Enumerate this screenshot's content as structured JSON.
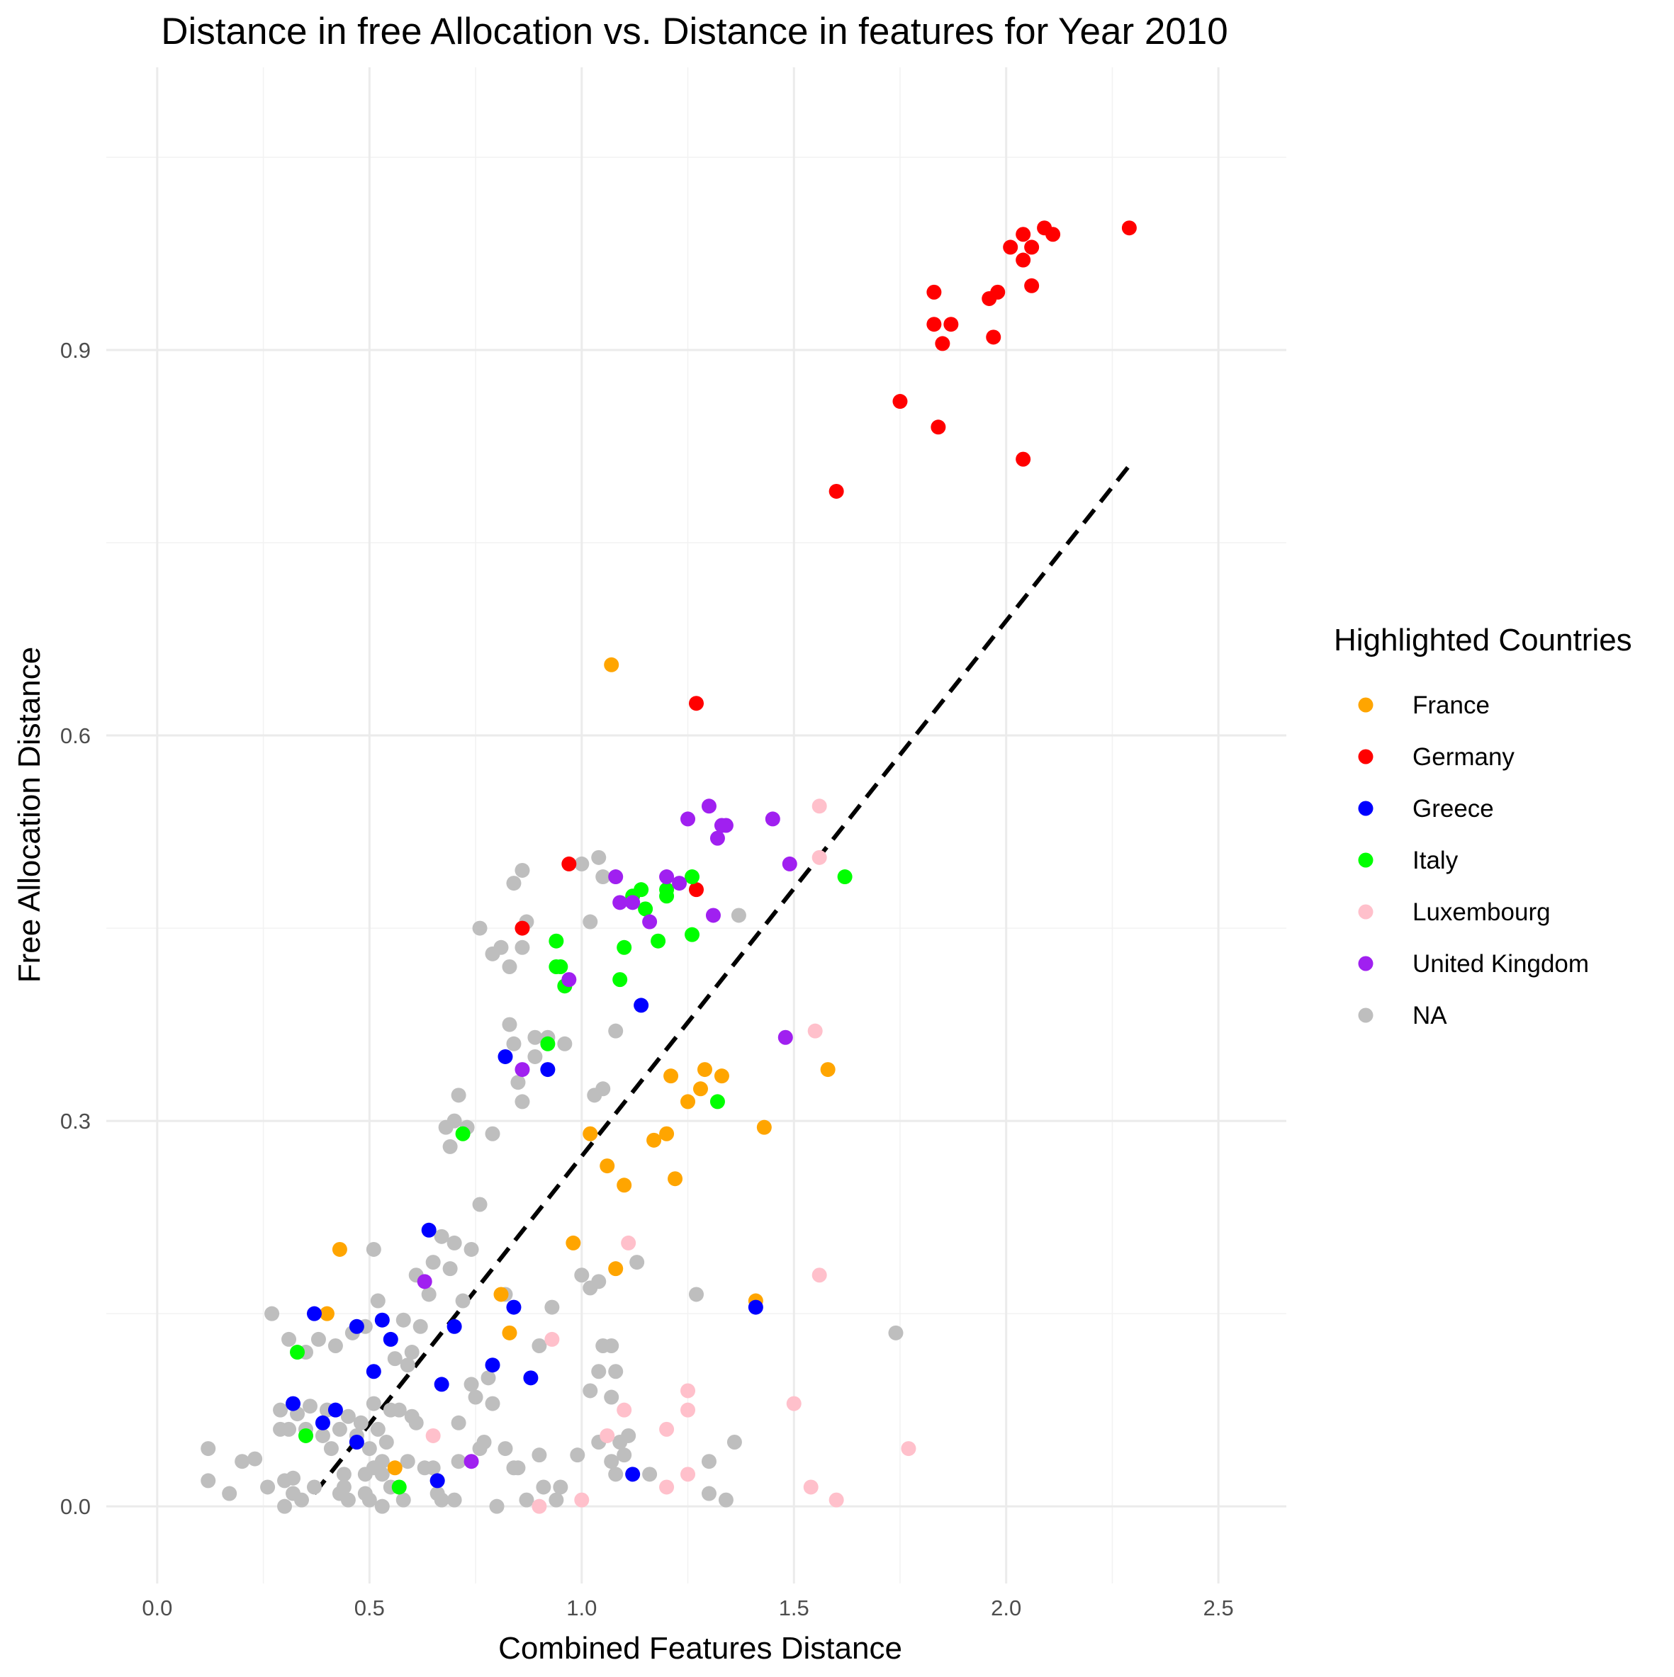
{
  "chart_data": {
    "type": "scatter",
    "title": "Distance in free Allocation vs. Distance in features for Year 2010",
    "xlabel": "Combined Features Distance",
    "ylabel": "Free Allocation Distance",
    "xlim": [
      -0.12,
      2.66
    ],
    "ylim": [
      -0.06,
      1.12
    ],
    "x_ticks": [
      0.0,
      0.5,
      1.0,
      1.5,
      2.0,
      2.5
    ],
    "x_tick_labels": [
      "0.0",
      "0.5",
      "1.0",
      "1.5",
      "2.0",
      "2.5"
    ],
    "y_ticks": [
      0.0,
      0.3,
      0.6,
      0.9
    ],
    "y_tick_labels": [
      "0.0",
      "0.3",
      "0.6",
      "0.9"
    ],
    "grid": true,
    "legend": {
      "title": "Highlighted Countries",
      "position": "right"
    },
    "trend_line": {
      "style": "dashed",
      "color": "#000000",
      "x": [
        0.37,
        2.29
      ],
      "y": [
        0.01,
        0.81
      ]
    },
    "series": [
      {
        "name": "NA",
        "color": "#BEBEBE",
        "points": [
          [
            0.12,
            0.02
          ],
          [
            0.12,
            0.045
          ],
          [
            0.17,
            0.01
          ],
          [
            0.2,
            0.035
          ],
          [
            0.23,
            0.037
          ],
          [
            0.26,
            0.015
          ],
          [
            0.27,
            0.15
          ],
          [
            0.29,
            0.06
          ],
          [
            0.29,
            0.075
          ],
          [
            0.3,
            0.0
          ],
          [
            0.3,
            0.02
          ],
          [
            0.31,
            0.06
          ],
          [
            0.31,
            0.13
          ],
          [
            0.32,
            0.01
          ],
          [
            0.32,
            0.022
          ],
          [
            0.33,
            0.072
          ],
          [
            0.34,
            0.005
          ],
          [
            0.35,
            0.06
          ],
          [
            0.35,
            0.12
          ],
          [
            0.36,
            0.078
          ],
          [
            0.37,
            0.015
          ],
          [
            0.38,
            0.13
          ],
          [
            0.39,
            0.055
          ],
          [
            0.4,
            0.075
          ],
          [
            0.41,
            0.045
          ],
          [
            0.42,
            0.125
          ],
          [
            0.43,
            0.01
          ],
          [
            0.43,
            0.06
          ],
          [
            0.44,
            0.025
          ],
          [
            0.44,
            0.015
          ],
          [
            0.45,
            0.07
          ],
          [
            0.45,
            0.005
          ],
          [
            0.46,
            0.135
          ],
          [
            0.47,
            0.055
          ],
          [
            0.48,
            0.065
          ],
          [
            0.49,
            0.01
          ],
          [
            0.49,
            0.025
          ],
          [
            0.49,
            0.14
          ],
          [
            0.5,
            0.005
          ],
          [
            0.5,
            0.045
          ],
          [
            0.51,
            0.08
          ],
          [
            0.51,
            0.03
          ],
          [
            0.51,
            0.2
          ],
          [
            0.52,
            0.06
          ],
          [
            0.52,
            0.16
          ],
          [
            0.53,
            0.025
          ],
          [
            0.53,
            0.035
          ],
          [
            0.53,
            0.0
          ],
          [
            0.54,
            0.05
          ],
          [
            0.55,
            0.015
          ],
          [
            0.55,
            0.075
          ],
          [
            0.56,
            0.115
          ],
          [
            0.57,
            0.075
          ],
          [
            0.58,
            0.005
          ],
          [
            0.58,
            0.145
          ],
          [
            0.59,
            0.035
          ],
          [
            0.59,
            0.11
          ],
          [
            0.6,
            0.07
          ],
          [
            0.6,
            0.12
          ],
          [
            0.61,
            0.065
          ],
          [
            0.61,
            0.18
          ],
          [
            0.62,
            0.14
          ],
          [
            0.63,
            0.03
          ],
          [
            0.64,
            0.165
          ],
          [
            0.65,
            0.03
          ],
          [
            0.65,
            0.19
          ],
          [
            0.66,
            0.01
          ],
          [
            0.66,
            0.02
          ],
          [
            0.67,
            0.005
          ],
          [
            0.67,
            0.21
          ],
          [
            0.68,
            0.295
          ],
          [
            0.69,
            0.185
          ],
          [
            0.69,
            0.28
          ],
          [
            0.7,
            0.005
          ],
          [
            0.7,
            0.3
          ],
          [
            0.7,
            0.205
          ],
          [
            0.71,
            0.035
          ],
          [
            0.71,
            0.065
          ],
          [
            0.71,
            0.32
          ],
          [
            0.72,
            0.16
          ],
          [
            0.73,
            0.295
          ],
          [
            0.74,
            0.095
          ],
          [
            0.74,
            0.2
          ],
          [
            0.75,
            0.085
          ],
          [
            0.76,
            0.045
          ],
          [
            0.76,
            0.235
          ],
          [
            0.76,
            0.45
          ],
          [
            0.77,
            0.05
          ],
          [
            0.78,
            0.1
          ],
          [
            0.79,
            0.08
          ],
          [
            0.79,
            0.29
          ],
          [
            0.79,
            0.43
          ],
          [
            0.8,
            0.0
          ],
          [
            0.81,
            0.435
          ],
          [
            0.82,
            0.045
          ],
          [
            0.82,
            0.165
          ],
          [
            0.83,
            0.42
          ],
          [
            0.83,
            0.375
          ],
          [
            0.84,
            0.03
          ],
          [
            0.84,
            0.36
          ],
          [
            0.84,
            0.485
          ],
          [
            0.85,
            0.33
          ],
          [
            0.85,
            0.03
          ],
          [
            0.86,
            0.315
          ],
          [
            0.86,
            0.435
          ],
          [
            0.86,
            0.495
          ],
          [
            0.87,
            0.455
          ],
          [
            0.87,
            0.005
          ],
          [
            0.89,
            0.365
          ],
          [
            0.89,
            0.35
          ],
          [
            0.9,
            0.125
          ],
          [
            0.9,
            0.04
          ],
          [
            0.91,
            0.015
          ],
          [
            0.92,
            0.365
          ],
          [
            0.93,
            0.155
          ],
          [
            0.94,
            0.005
          ],
          [
            0.95,
            0.015
          ],
          [
            0.96,
            0.36
          ],
          [
            0.99,
            0.04
          ],
          [
            1.0,
            0.18
          ],
          [
            1.0,
            0.5
          ],
          [
            1.02,
            0.09
          ],
          [
            1.02,
            0.17
          ],
          [
            1.02,
            0.455
          ],
          [
            1.03,
            0.32
          ],
          [
            1.04,
            0.05
          ],
          [
            1.04,
            0.105
          ],
          [
            1.04,
            0.175
          ],
          [
            1.04,
            0.505
          ],
          [
            1.05,
            0.125
          ],
          [
            1.05,
            0.325
          ],
          [
            1.05,
            0.49
          ],
          [
            1.07,
            0.125
          ],
          [
            1.07,
            0.035
          ],
          [
            1.07,
            0.085
          ],
          [
            1.08,
            0.025
          ],
          [
            1.08,
            0.105
          ],
          [
            1.08,
            0.37
          ],
          [
            1.09,
            0.05
          ],
          [
            1.1,
            0.04
          ],
          [
            1.11,
            0.055
          ],
          [
            1.13,
            0.19
          ],
          [
            1.16,
            0.025
          ],
          [
            1.27,
            0.165
          ],
          [
            1.3,
            0.035
          ],
          [
            1.3,
            0.01
          ],
          [
            1.34,
            0.005
          ],
          [
            1.36,
            0.05
          ],
          [
            1.37,
            0.46
          ],
          [
            1.74,
            0.135
          ]
        ]
      },
      {
        "name": "France",
        "color": "#FFA500",
        "points": [
          [
            0.4,
            0.15
          ],
          [
            0.43,
            0.2
          ],
          [
            0.56,
            0.03
          ],
          [
            0.81,
            0.165
          ],
          [
            0.83,
            0.135
          ],
          [
            0.98,
            0.205
          ],
          [
            1.02,
            0.29
          ],
          [
            1.06,
            0.265
          ],
          [
            1.07,
            0.655
          ],
          [
            1.08,
            0.185
          ],
          [
            1.1,
            0.25
          ],
          [
            1.17,
            0.285
          ],
          [
            1.2,
            0.29
          ],
          [
            1.21,
            0.335
          ],
          [
            1.22,
            0.255
          ],
          [
            1.25,
            0.315
          ],
          [
            1.28,
            0.325
          ],
          [
            1.29,
            0.34
          ],
          [
            1.33,
            0.335
          ],
          [
            1.41,
            0.16
          ],
          [
            1.43,
            0.295
          ],
          [
            1.58,
            0.34
          ]
        ]
      },
      {
        "name": "Germany",
        "color": "#FF0000",
        "points": [
          [
            0.86,
            0.45
          ],
          [
            0.97,
            0.5
          ],
          [
            1.27,
            0.48
          ],
          [
            1.27,
            0.625
          ],
          [
            1.6,
            0.79
          ],
          [
            1.75,
            0.86
          ],
          [
            1.83,
            0.945
          ],
          [
            1.83,
            0.92
          ],
          [
            1.84,
            0.84
          ],
          [
            1.85,
            0.905
          ],
          [
            1.87,
            0.92
          ],
          [
            1.96,
            0.94
          ],
          [
            1.97,
            0.91
          ],
          [
            1.98,
            0.945
          ],
          [
            2.01,
            0.98
          ],
          [
            2.04,
            0.97
          ],
          [
            2.04,
            0.99
          ],
          [
            2.04,
            0.815
          ],
          [
            2.06,
            0.98
          ],
          [
            2.06,
            0.95
          ],
          [
            2.09,
            0.995
          ],
          [
            2.11,
            0.99
          ],
          [
            2.29,
            0.995
          ]
        ]
      },
      {
        "name": "Greece",
        "color": "#0000FF",
        "points": [
          [
            0.32,
            0.08
          ],
          [
            0.37,
            0.15
          ],
          [
            0.39,
            0.065
          ],
          [
            0.42,
            0.075
          ],
          [
            0.47,
            0.14
          ],
          [
            0.47,
            0.05
          ],
          [
            0.51,
            0.105
          ],
          [
            0.53,
            0.145
          ],
          [
            0.55,
            0.13
          ],
          [
            0.64,
            0.215
          ],
          [
            0.66,
            0.02
          ],
          [
            0.67,
            0.095
          ],
          [
            0.7,
            0.14
          ],
          [
            0.79,
            0.11
          ],
          [
            0.82,
            0.35
          ],
          [
            0.84,
            0.155
          ],
          [
            0.88,
            0.1
          ],
          [
            0.92,
            0.34
          ],
          [
            1.12,
            0.025
          ],
          [
            1.14,
            0.39
          ],
          [
            1.41,
            0.155
          ]
        ]
      },
      {
        "name": "Italy",
        "color": "#00FF00",
        "points": [
          [
            0.33,
            0.12
          ],
          [
            0.35,
            0.055
          ],
          [
            0.57,
            0.015
          ],
          [
            0.72,
            0.29
          ],
          [
            0.92,
            0.36
          ],
          [
            0.94,
            0.44
          ],
          [
            0.94,
            0.42
          ],
          [
            0.95,
            0.42
          ],
          [
            0.96,
            0.405
          ],
          [
            1.09,
            0.41
          ],
          [
            1.1,
            0.435
          ],
          [
            1.12,
            0.475
          ],
          [
            1.14,
            0.48
          ],
          [
            1.15,
            0.465
          ],
          [
            1.18,
            0.44
          ],
          [
            1.2,
            0.48
          ],
          [
            1.2,
            0.475
          ],
          [
            1.26,
            0.49
          ],
          [
            1.26,
            0.445
          ],
          [
            1.32,
            0.315
          ],
          [
            1.62,
            0.49
          ]
        ]
      },
      {
        "name": "Luxembourg",
        "color": "#FFC0CB",
        "points": [
          [
            0.65,
            0.055
          ],
          [
            0.9,
            0.0
          ],
          [
            0.93,
            0.13
          ],
          [
            1.0,
            0.005
          ],
          [
            1.06,
            0.055
          ],
          [
            1.1,
            0.075
          ],
          [
            1.11,
            0.205
          ],
          [
            1.2,
            0.06
          ],
          [
            1.2,
            0.015
          ],
          [
            1.25,
            0.09
          ],
          [
            1.25,
            0.075
          ],
          [
            1.25,
            0.025
          ],
          [
            1.5,
            0.08
          ],
          [
            1.54,
            0.015
          ],
          [
            1.55,
            0.37
          ],
          [
            1.56,
            0.545
          ],
          [
            1.56,
            0.18
          ],
          [
            1.56,
            0.505
          ],
          [
            1.6,
            0.005
          ],
          [
            1.77,
            0.045
          ]
        ]
      },
      {
        "name": "United Kingdom",
        "color": "#A020F0",
        "points": [
          [
            0.63,
            0.175
          ],
          [
            0.74,
            0.035
          ],
          [
            0.86,
            0.34
          ],
          [
            0.97,
            0.41
          ],
          [
            1.08,
            0.49
          ],
          [
            1.09,
            0.47
          ],
          [
            1.12,
            0.47
          ],
          [
            1.2,
            0.49
          ],
          [
            1.23,
            0.485
          ],
          [
            1.25,
            0.535
          ],
          [
            1.16,
            0.455
          ],
          [
            1.3,
            0.545
          ],
          [
            1.31,
            0.46
          ],
          [
            1.32,
            0.52
          ],
          [
            1.33,
            0.53
          ],
          [
            1.34,
            0.53
          ],
          [
            1.45,
            0.535
          ],
          [
            1.48,
            0.365
          ],
          [
            1.49,
            0.5
          ]
        ]
      }
    ]
  },
  "legend_items": [
    {
      "label": "France",
      "color": "#FFA500"
    },
    {
      "label": "Germany",
      "color": "#FF0000"
    },
    {
      "label": "Greece",
      "color": "#0000FF"
    },
    {
      "label": "Italy",
      "color": "#00FF00"
    },
    {
      "label": "Luxembourg",
      "color": "#FFC0CB"
    },
    {
      "label": "United Kingdom",
      "color": "#A020F0"
    },
    {
      "label": "NA",
      "color": "#BEBEBE"
    }
  ]
}
